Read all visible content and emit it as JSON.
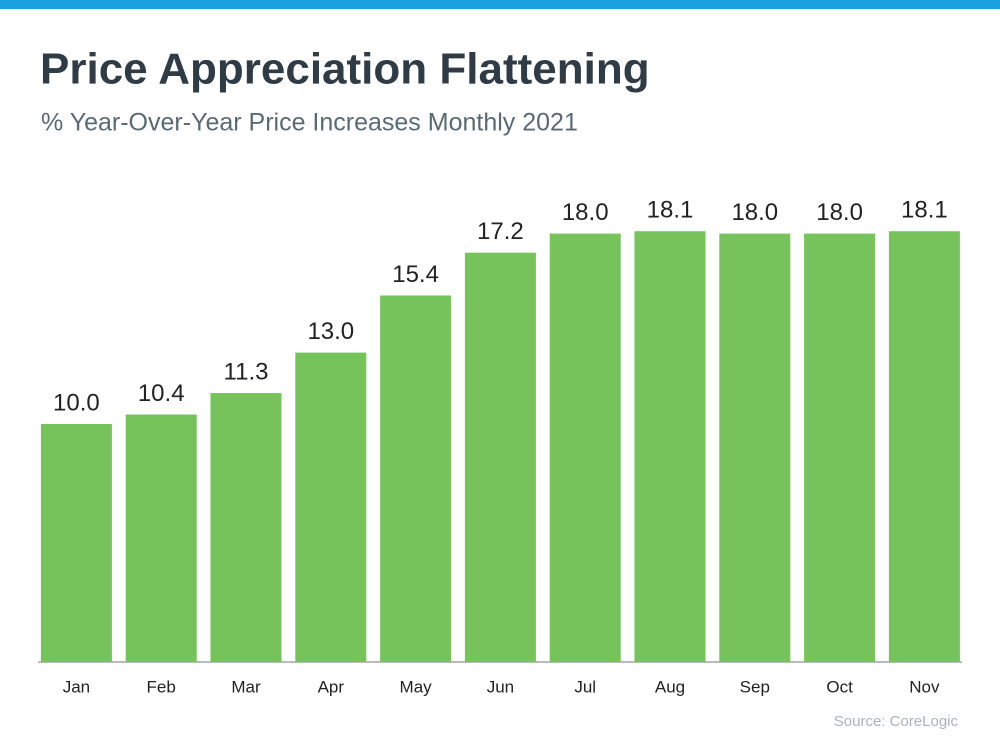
{
  "chart_data": {
    "type": "bar",
    "title": "Price Appreciation Flattening",
    "subtitle": "% Year-Over-Year Price Increases Monthly 2021",
    "categories": [
      "Jan",
      "Feb",
      "Mar",
      "Apr",
      "May",
      "Jun",
      "Jul",
      "Aug",
      "Sep",
      "Oct",
      "Nov"
    ],
    "values": [
      10.0,
      10.4,
      11.3,
      13.0,
      15.4,
      17.2,
      18.0,
      18.1,
      18.0,
      18.0,
      18.1
    ],
    "value_labels": [
      "10.0",
      "10.4",
      "11.3",
      "13.0",
      "15.4",
      "17.2",
      "18.0",
      "18.1",
      "18.0",
      "18.0",
      "18.1"
    ],
    "color": "#76c35b",
    "source": "Source: CoreLogic"
  }
}
